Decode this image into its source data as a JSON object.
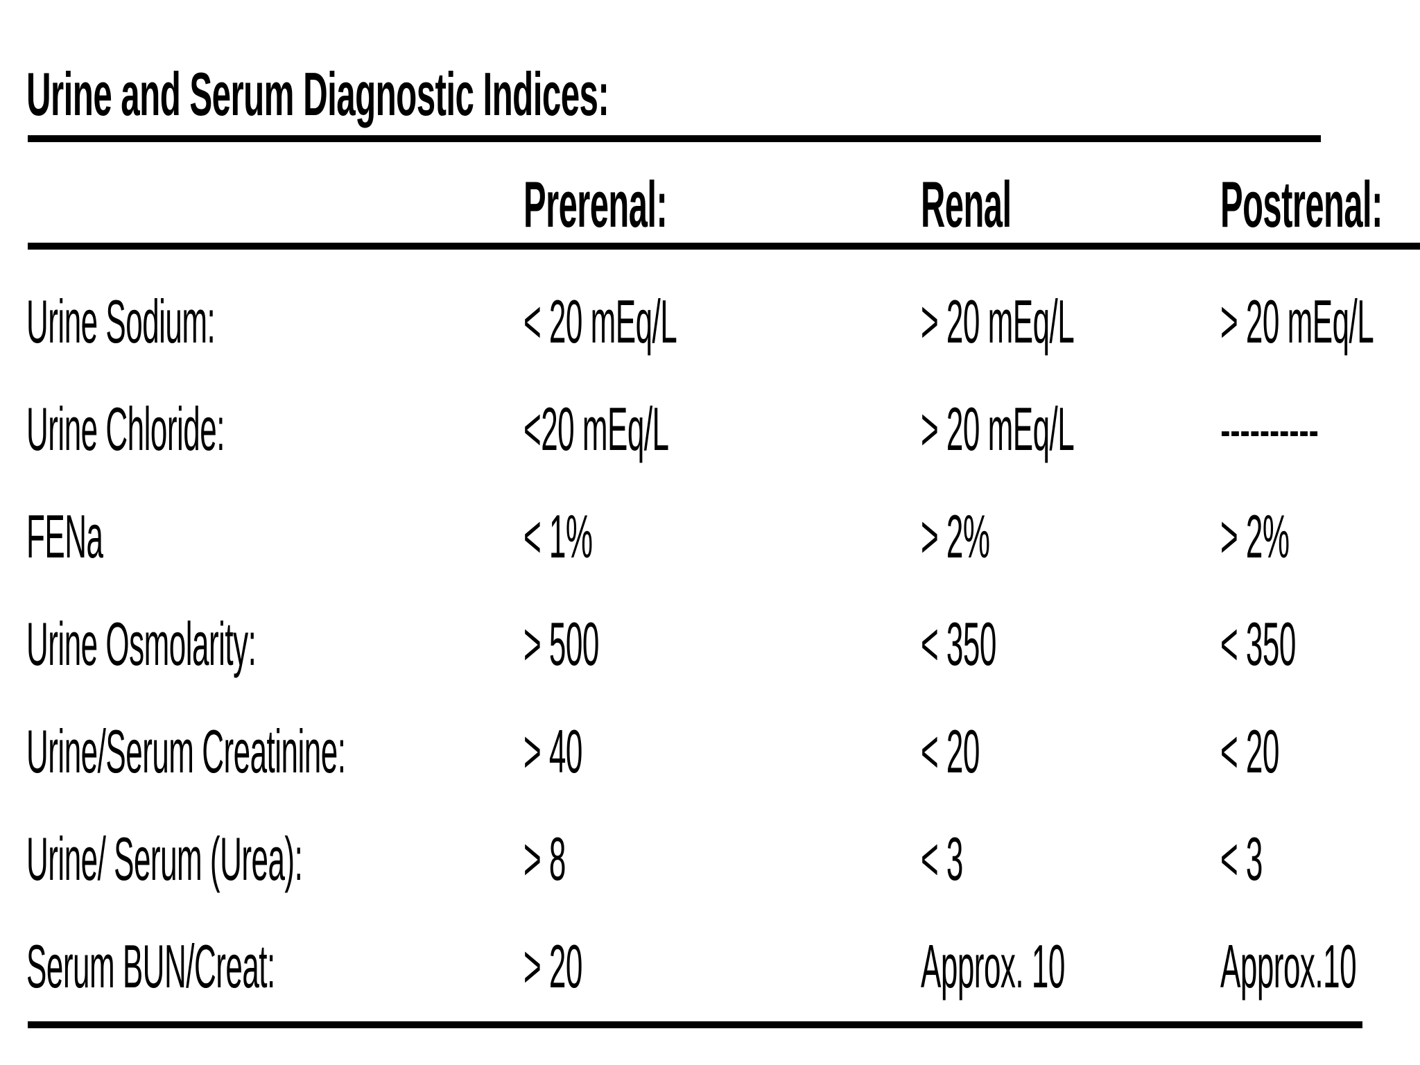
{
  "title": "Urine and Serum Diagnostic Indices:",
  "columns": [
    "",
    "Prerenal:",
    "Renal",
    "Postrenal:"
  ],
  "rows": [
    {
      "label": "Urine Sodium:",
      "prerenal": "< 20 mEq/L",
      "renal": "> 20 mEq/L",
      "postrenal": "> 20 mEq/L"
    },
    {
      "label": "Urine Chloride:",
      "prerenal": "<20 mEq/L",
      "renal": "> 20 mEq/L",
      "postrenal": "----------"
    },
    {
      "label": "FENa",
      "prerenal": "< 1%",
      "renal": "> 2%",
      "postrenal": "> 2%"
    },
    {
      "label": "Urine Osmolarity:",
      "prerenal": "> 500",
      "renal": "< 350",
      "postrenal": "< 350"
    },
    {
      "label": "Urine/Serum Creatinine:",
      "prerenal": "> 40",
      "renal": "< 20",
      "postrenal": "< 20"
    },
    {
      "label": "Urine/ Serum (Urea):",
      "prerenal": "> 8",
      "renal": "< 3",
      "postrenal": "< 3"
    },
    {
      "label": "Serum BUN/Creat:",
      "prerenal": "> 20",
      "renal": "Approx. 10",
      "postrenal": "Approx.10"
    }
  ]
}
